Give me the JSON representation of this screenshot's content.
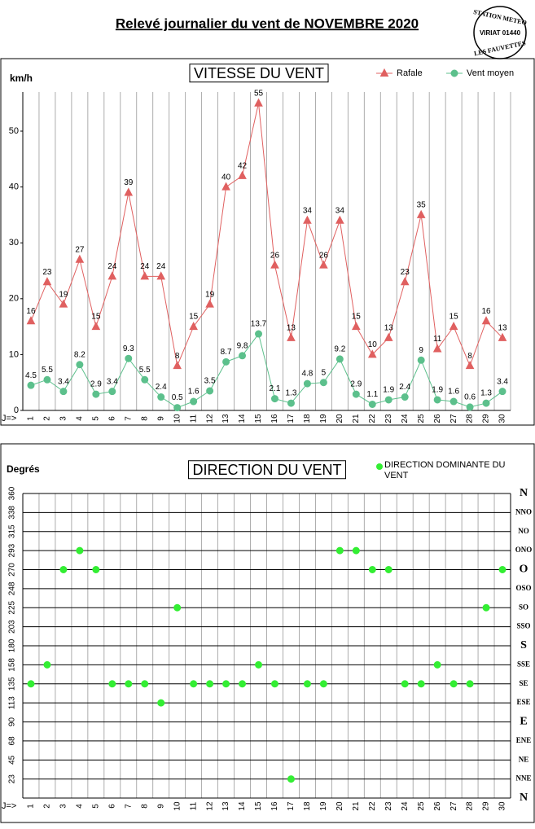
{
  "header": {
    "title": "Relevé journalier du vent de NOVEMBRE 2020",
    "stamp": [
      "STATION METEO",
      "VIRIAT 01440",
      "LES FAUVETTES"
    ]
  },
  "chart_data": [
    {
      "type": "line",
      "title": "VITESSE DU VENT",
      "y_label": "km/h",
      "x_label": "J=>",
      "categories": [
        "1",
        "2",
        "3",
        "4",
        "5",
        "6",
        "7",
        "8",
        "9",
        "10",
        "11",
        "12",
        "13",
        "14",
        "15",
        "16",
        "17",
        "18",
        "19",
        "20",
        "21",
        "22",
        "23",
        "24",
        "25",
        "26",
        "27",
        "28",
        "29",
        "30"
      ],
      "series": [
        {
          "name": "Rafale",
          "color": "#e06060",
          "marker": "triangle",
          "values": [
            16,
            23,
            19,
            27,
            15,
            24,
            39,
            24,
            24,
            8,
            15,
            19,
            40,
            42,
            55,
            26,
            13,
            34,
            26,
            34,
            15,
            10,
            13,
            23,
            35,
            11,
            15,
            8,
            16,
            13
          ]
        },
        {
          "name": "Vent moyen",
          "color": "#5cc08c",
          "marker": "circle",
          "values": [
            4.5,
            5.5,
            3.4,
            8.2,
            2.9,
            3.4,
            9.3,
            5.5,
            2.4,
            0.5,
            1.6,
            3.5,
            8.7,
            9.8,
            13.7,
            2.1,
            1.3,
            4.8,
            5,
            9.2,
            2.9,
            1.1,
            1.9,
            2.4,
            9,
            1.9,
            1.6,
            0.6,
            1.3,
            3.4
          ]
        }
      ],
      "data_labels": true,
      "ylim": [
        0,
        57
      ],
      "yticks": [
        0,
        10,
        20,
        30,
        40,
        50
      ],
      "grid": true,
      "legend": "top-right"
    },
    {
      "type": "scatter",
      "title": "DIRECTION DU VENT",
      "y_label": "Degrés",
      "x_label": "J=>",
      "categories": [
        "1",
        "2",
        "3",
        "4",
        "5",
        "6",
        "7",
        "8",
        "9",
        "10",
        "11",
        "12",
        "13",
        "14",
        "15",
        "16",
        "17",
        "18",
        "19",
        "20",
        "21",
        "22",
        "23",
        "24",
        "25",
        "26",
        "27",
        "28",
        "29",
        "30"
      ],
      "series": [
        {
          "name": "DIRECTION DOMINANTE DU VENT",
          "color": "#33ee33",
          "marker": "circle",
          "values": [
            135,
            157.5,
            270,
            292.5,
            270,
            135,
            135,
            135,
            112.5,
            225,
            135,
            135,
            135,
            135,
            157.5,
            135,
            22.5,
            135,
            135,
            292.5,
            292.5,
            270,
            270,
            135,
            135,
            157.5,
            135,
            135,
            225,
            270
          ]
        }
      ],
      "data_labels": false,
      "ylim": [
        0,
        360
      ],
      "yticks": [
        {
          "value": 22.5,
          "label": "23"
        },
        45,
        {
          "value": 67.5,
          "label": "68"
        },
        90,
        {
          "value": 112.5,
          "label": "113"
        },
        135,
        {
          "value": 157.5,
          "label": "158"
        },
        180,
        {
          "value": 202.5,
          "label": "203"
        },
        225,
        {
          "value": 247.5,
          "label": "248"
        },
        270,
        {
          "value": 292.5,
          "label": "293"
        },
        315,
        {
          "value": 337.5,
          "label": "338"
        },
        360
      ],
      "y2lim": [
        0,
        360
      ],
      "y2ticks": [
        {
          "value": 0,
          "label": "N"
        },
        {
          "value": 22.5,
          "label": "NNE"
        },
        {
          "value": 45,
          "label": "NE"
        },
        {
          "value": 67.5,
          "label": "ENE"
        },
        {
          "value": 90,
          "label": "E"
        },
        {
          "value": 112.5,
          "label": "ESE"
        },
        {
          "value": 135,
          "label": "SE"
        },
        {
          "value": 157.5,
          "label": "SSE"
        },
        {
          "value": 180,
          "label": "S"
        },
        {
          "value": 202.5,
          "label": "SSO"
        },
        {
          "value": 225,
          "label": "SO"
        },
        {
          "value": 247.5,
          "label": "OSO"
        },
        {
          "value": 270,
          "label": "O"
        },
        {
          "value": 292.5,
          "label": "ONO"
        },
        {
          "value": 315,
          "label": "NO"
        },
        {
          "value": 337.5,
          "label": "NNO"
        },
        {
          "value": 360,
          "label": "N"
        }
      ],
      "grid": true,
      "legend": "top-right"
    }
  ]
}
